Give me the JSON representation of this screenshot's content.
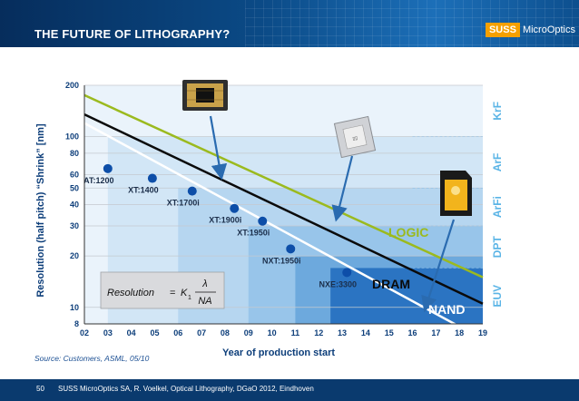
{
  "slide": {
    "title": "THE FUTURE OF LITHOGRAPHY?",
    "brand": {
      "logo_text": "SUSS",
      "name": "MicroOptics"
    },
    "footer": {
      "page_number": "50",
      "text": "SUSS MicroOptics SA, R. Voelkel, Optical Lithography, DGaO 2012, Eindhoven"
    },
    "source": "Source: Customers, ASML, 05/10",
    "formula": {
      "lhs": "Resolution",
      "eq": "=",
      "k": "K",
      "k_sub": "1",
      "num": "λ",
      "den": "NA"
    }
  },
  "colors": {
    "header_bg": "#0b4a86",
    "axis_text": "#0d3e7a",
    "logic": "#9bba1e",
    "dram": "#0a0a0a",
    "nand": "#ffffff",
    "marker": "#0d4ea8",
    "region_label": "#5ab4e6",
    "label_logic": "#9bba1e",
    "source_text": "#1b4f93"
  },
  "icons": [
    "cpu-chip-icon",
    "processor-package-icon",
    "sd-card-icon"
  ],
  "chart_data": {
    "type": "line",
    "x_axis": {
      "label": "Year of production start",
      "ticks": [
        "02",
        "03",
        "04",
        "05",
        "06",
        "07",
        "08",
        "09",
        "10",
        "11",
        "12",
        "13",
        "14",
        "15",
        "16",
        "17",
        "18",
        "19"
      ],
      "range": [
        2002,
        2019
      ]
    },
    "y_axis": {
      "label": "Resolution (half pitch) “Shrink” [nm]",
      "scale": "log",
      "ticks": [
        200,
        100,
        80,
        60,
        50,
        40,
        30,
        20,
        10,
        8
      ],
      "range": [
        8,
        200
      ]
    },
    "series": [
      {
        "name": "LOGIC",
        "x": [
          2002,
          2019
        ],
        "y": [
          175,
          15
        ]
      },
      {
        "name": "DRAM",
        "x": [
          2002,
          2019
        ],
        "y": [
          135,
          10.5
        ]
      },
      {
        "name": "NAND",
        "x": [
          2002,
          2019
        ],
        "y": [
          120,
          6.5
        ]
      }
    ],
    "scanners": [
      {
        "label": "AT:1200",
        "x": 2003,
        "y": 65
      },
      {
        "label": "XT:1400",
        "x": 2004.9,
        "y": 57
      },
      {
        "label": "XT:1700i",
        "x": 2006.6,
        "y": 48
      },
      {
        "label": "XT:1900i",
        "x": 2008.4,
        "y": 38
      },
      {
        "label": "XT:1950i",
        "x": 2009.6,
        "y": 32
      },
      {
        "label": "NXT:1950i",
        "x": 2010.8,
        "y": 22
      },
      {
        "label": "NXE:3300",
        "x": 2013.2,
        "y": 16
      }
    ],
    "regions": [
      {
        "name": "KrF",
        "y_range": [
          100,
          200
        ]
      },
      {
        "name": "ArF",
        "y_range": [
          50,
          100
        ]
      },
      {
        "name": "ArFi",
        "y_range": [
          30,
          50
        ]
      },
      {
        "name": "DPT",
        "y_range": [
          17,
          30
        ]
      },
      {
        "name": "EUV",
        "y_range": [
          8,
          17
        ]
      }
    ],
    "legend_position": "inline"
  }
}
